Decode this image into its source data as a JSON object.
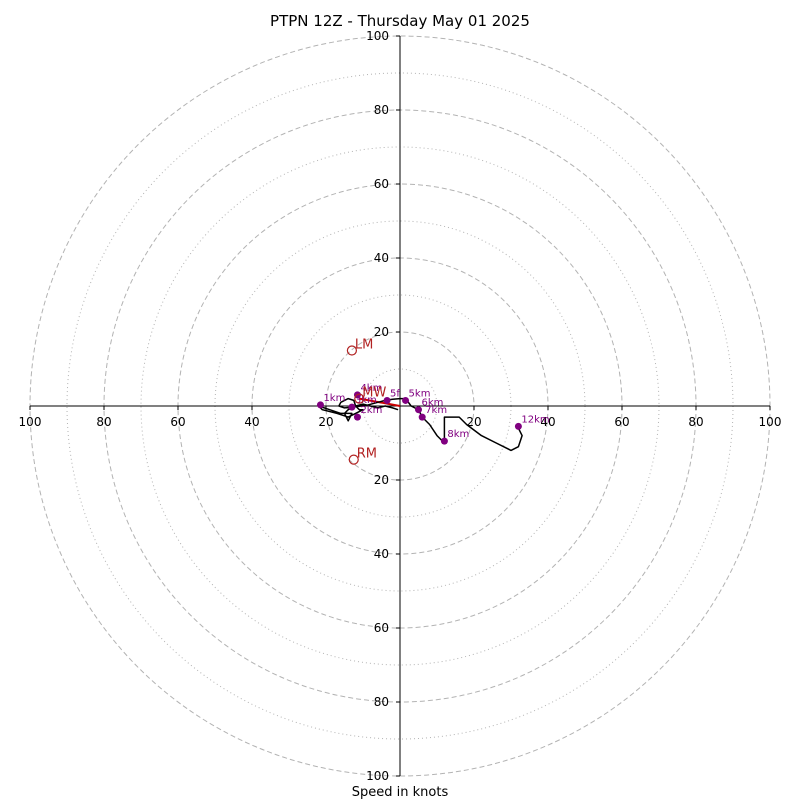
{
  "chart_data": {
    "type": "hodograph",
    "title": "PTPN 12Z - Thursday May 01 2025",
    "xlabel": "Speed in knots",
    "range": [
      -100,
      100
    ],
    "rings_major": [
      20,
      40,
      60,
      80,
      100
    ],
    "rings_minor": [
      10,
      30,
      50,
      70,
      90
    ],
    "ticks": {
      "right": [
        "20",
        "40",
        "60",
        "80",
        "100"
      ],
      "left": [
        "20",
        "40",
        "60",
        "80",
        "100"
      ],
      "top": [
        "20",
        "40",
        "60",
        "80",
        "100"
      ],
      "bottom": [
        "20",
        "40",
        "60",
        "80",
        "100"
      ]
    },
    "tick_values": [
      20,
      40,
      60,
      80,
      100
    ],
    "hodograph_line": [
      [
        -0.5,
        -1
      ],
      [
        -2,
        -0.5
      ],
      [
        -4,
        0
      ],
      [
        -6,
        -0.5
      ],
      [
        -8,
        0
      ],
      [
        -10,
        0.5
      ],
      [
        -12,
        0
      ],
      [
        -14,
        -1
      ],
      [
        -15,
        -2
      ],
      [
        -14,
        -4
      ],
      [
        -13,
        -2
      ],
      [
        -16,
        -2
      ],
      [
        -19,
        -1
      ],
      [
        -22,
        0
      ],
      [
        -21,
        -1
      ],
      [
        -17,
        -2
      ],
      [
        -14,
        -3
      ],
      [
        -12,
        -2
      ],
      [
        -10,
        -1
      ],
      [
        -11,
        -1
      ],
      [
        -12,
        0
      ],
      [
        -12.5,
        1.5
      ],
      [
        -14,
        2
      ],
      [
        -15,
        1.5
      ],
      [
        -16,
        1
      ],
      [
        -16.5,
        0
      ],
      [
        -15,
        -0.5
      ],
      [
        -12,
        -0.2
      ],
      [
        -9,
        0.2
      ],
      [
        -6,
        1
      ],
      [
        -4,
        1.5
      ],
      [
        -2,
        1.8
      ],
      [
        0,
        2
      ],
      [
        1.5,
        2
      ],
      [
        3,
        0
      ],
      [
        5,
        -1
      ],
      [
        6,
        -3
      ],
      [
        8,
        -5
      ],
      [
        10,
        -8
      ],
      [
        12,
        -10
      ],
      [
        12,
        -3
      ],
      [
        16,
        -3
      ],
      [
        18,
        -5
      ],
      [
        22,
        -8
      ],
      [
        26,
        -10
      ],
      [
        30,
        -12
      ],
      [
        32,
        -11
      ],
      [
        33,
        -8
      ],
      [
        32,
        -6
      ]
    ],
    "height_markers": [
      {
        "label": "1km",
        "u": -21.5,
        "v": 0.3
      },
      {
        "label": "2km",
        "u": -11.5,
        "v": -3
      },
      {
        "label": "3km",
        "u": -13,
        "v": -0.3
      },
      {
        "label": "4km",
        "u": -11.5,
        "v": 3
      },
      {
        "label": "5km",
        "u": 1.5,
        "v": 1.5
      },
      {
        "label": "6km",
        "u": 5,
        "v": -1
      },
      {
        "label": "7km",
        "u": 6,
        "v": -3
      },
      {
        "label": "8km",
        "u": 12,
        "v": -9.5
      },
      {
        "label": "12km",
        "u": 32,
        "v": -5.5
      },
      {
        "label": "5f",
        "u": -3.5,
        "v": 1.5
      }
    ],
    "storm_motion": [
      {
        "label": "LM",
        "u": -13,
        "v": 15
      },
      {
        "label": "RM",
        "u": -12.5,
        "v": -14.5
      },
      {
        "label": "MW",
        "u": -11,
        "v": 2
      }
    ],
    "colors": {
      "ring": "#b3b3b3",
      "line": "#000000",
      "marker": "#800080",
      "storm": "#b22222",
      "shear": "#cc0000"
    }
  }
}
